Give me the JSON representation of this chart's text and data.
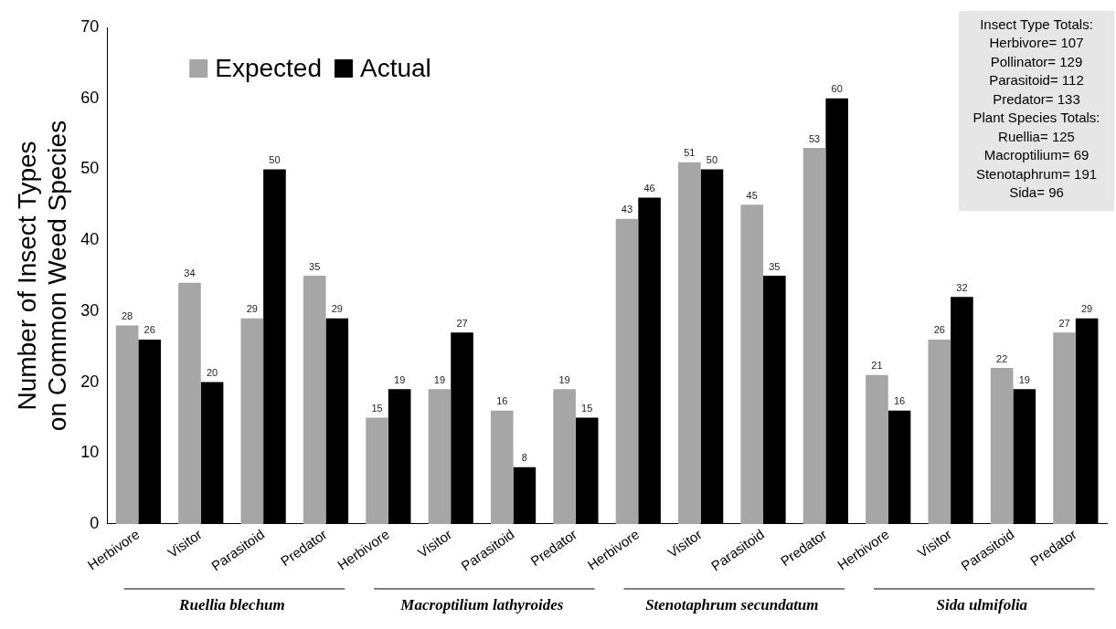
{
  "chart_data": {
    "type": "bar",
    "ylabel": "Number of Insect Types on Common Weed Species",
    "categories": [
      "Herbivore",
      "Visitor",
      "Parasitoid",
      "Predator",
      "Herbivore",
      "Visitor",
      "Parasitoid",
      "Predator",
      "Herbivore",
      "Visitor",
      "Parasitoid",
      "Predator",
      "Herbivore",
      "Visitor",
      "Parasitoid",
      "Predator"
    ],
    "series": [
      {
        "name": "Expected",
        "color": "#a6a6a6",
        "values": [
          28,
          34,
          29,
          35,
          15,
          19,
          16,
          19,
          43,
          51,
          45,
          53,
          21,
          26,
          22,
          27
        ]
      },
      {
        "name": "Actual",
        "color": "#000000",
        "values": [
          26,
          20,
          50,
          29,
          19,
          27,
          8,
          15,
          46,
          50,
          35,
          60,
          16,
          32,
          19,
          29
        ]
      }
    ],
    "ylim": [
      0,
      70
    ],
    "yticks": [
      0,
      10,
      20,
      30,
      40,
      50,
      60,
      70
    ],
    "grid": false,
    "legend": "top left",
    "data_labels": true,
    "annotations": [
      "Ruellia blechum",
      "Macroptilium lathyroides",
      "Stenotaphrum secundatum",
      "Sida ulmifolia",
      "Insect Type Totals:",
      "Herbivore= 107",
      "Pollinator= 129",
      "Parasitoid= 112",
      "Predator= 133",
      "Plant Species Totals:",
      "Ruellia= 125",
      "Macroptilium= 69",
      "Stenotaphrum= 191",
      "Sida= 96"
    ]
  }
}
